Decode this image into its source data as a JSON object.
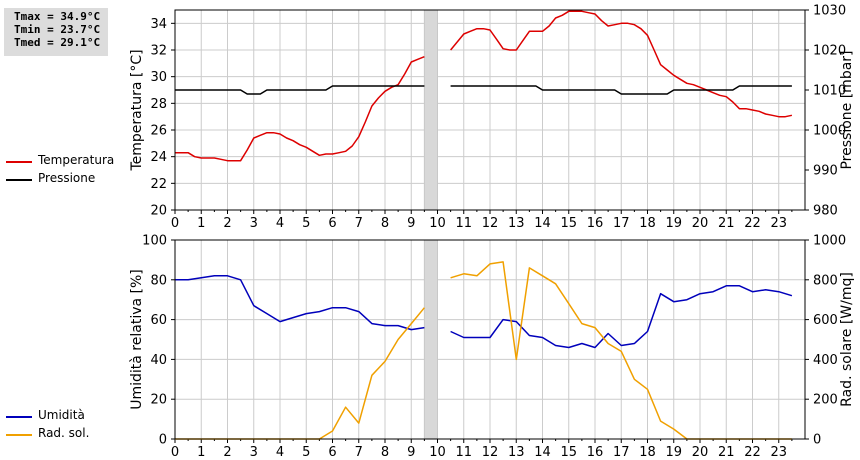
{
  "stats": {
    "tmax": "Tmax = 34.9°C",
    "tmin": "Tmin = 23.7°C",
    "tmed": "Tmed = 29.1°C"
  },
  "legend_top": [
    {
      "label": "Temperatura",
      "color": "#dd0000"
    },
    {
      "label": "Pressione",
      "color": "#000000"
    }
  ],
  "legend_bottom": [
    {
      "label": "Umidità",
      "color": "#0000bb"
    },
    {
      "label": "Rad. sol.",
      "color": "#f0a000"
    }
  ],
  "chart_data": [
    {
      "type": "line",
      "ylabel_left": "Temperatura [°C]",
      "ylabel_right": "Pressione [mbar]",
      "xlim": [
        0,
        24
      ],
      "ylim_left": [
        20,
        35
      ],
      "ylim_right": [
        980,
        1030
      ],
      "x_ticks": [
        "0",
        "1",
        "2",
        "3",
        "4",
        "5",
        "6",
        "7",
        "8",
        "9",
        "10",
        "11",
        "12",
        "13",
        "14",
        "15",
        "16",
        "17",
        "18",
        "19",
        "20",
        "21",
        "22",
        "23"
      ],
      "y_ticks_left": [
        "20",
        "22",
        "24",
        "26",
        "28",
        "30",
        "32",
        "34"
      ],
      "y_ticks_right": [
        "980",
        "990",
        "1000",
        "1010",
        "1020",
        "1030"
      ],
      "grid": true,
      "gap": [
        9.5,
        10.0
      ],
      "series": [
        {
          "name": "Temperatura",
          "axis": "left",
          "color": "#dd0000",
          "segments": [
            [
              [
                0,
                24.3
              ],
              [
                0.25,
                24.3
              ],
              [
                0.5,
                24.3
              ],
              [
                0.75,
                24.0
              ],
              [
                1,
                23.9
              ],
              [
                1.25,
                23.9
              ],
              [
                1.5,
                23.9
              ],
              [
                1.75,
                23.8
              ],
              [
                2,
                23.7
              ],
              [
                2.25,
                23.7
              ],
              [
                2.5,
                23.7
              ],
              [
                2.75,
                24.5
              ],
              [
                3,
                25.4
              ],
              [
                3.25,
                25.6
              ],
              [
                3.5,
                25.8
              ],
              [
                3.75,
                25.8
              ],
              [
                4,
                25.7
              ],
              [
                4.25,
                25.4
              ],
              [
                4.5,
                25.2
              ],
              [
                4.75,
                24.9
              ],
              [
                5,
                24.7
              ],
              [
                5.25,
                24.4
              ],
              [
                5.5,
                24.1
              ],
              [
                5.75,
                24.2
              ],
              [
                6,
                24.2
              ],
              [
                6.25,
                24.3
              ],
              [
                6.5,
                24.4
              ],
              [
                6.75,
                24.8
              ],
              [
                7,
                25.5
              ],
              [
                7.25,
                26.6
              ],
              [
                7.5,
                27.8
              ],
              [
                7.75,
                28.4
              ],
              [
                8,
                28.9
              ],
              [
                8.25,
                29.2
              ],
              [
                8.5,
                29.4
              ],
              [
                8.75,
                30.2
              ],
              [
                9,
                31.1
              ],
              [
                9.25,
                31.3
              ],
              [
                9.5,
                31.5
              ]
            ],
            [
              [
                10.5,
                32.0
              ],
              [
                10.75,
                32.6
              ],
              [
                11,
                33.2
              ],
              [
                11.25,
                33.4
              ],
              [
                11.5,
                33.6
              ],
              [
                11.75,
                33.6
              ],
              [
                12,
                33.5
              ],
              [
                12.25,
                32.8
              ],
              [
                12.5,
                32.1
              ],
              [
                12.75,
                32.0
              ],
              [
                13,
                32.0
              ],
              [
                13.25,
                32.7
              ],
              [
                13.5,
                33.4
              ],
              [
                13.75,
                33.4
              ],
              [
                14,
                33.4
              ],
              [
                14.25,
                33.8
              ],
              [
                14.5,
                34.4
              ],
              [
                14.75,
                34.6
              ],
              [
                15,
                34.9
              ],
              [
                15.25,
                34.9
              ],
              [
                15.5,
                34.9
              ],
              [
                15.75,
                34.8
              ],
              [
                16,
                34.7
              ],
              [
                16.25,
                34.2
              ],
              [
                16.5,
                33.8
              ],
              [
                16.75,
                33.9
              ],
              [
                17,
                34.0
              ],
              [
                17.25,
                34.0
              ],
              [
                17.5,
                33.9
              ],
              [
                17.75,
                33.6
              ],
              [
                18,
                33.1
              ],
              [
                18.25,
                32.0
              ],
              [
                18.5,
                30.9
              ],
              [
                18.75,
                30.5
              ],
              [
                19,
                30.1
              ],
              [
                19.25,
                29.8
              ],
              [
                19.5,
                29.5
              ],
              [
                19.75,
                29.4
              ],
              [
                20,
                29.2
              ],
              [
                20.25,
                29.0
              ],
              [
                20.5,
                28.8
              ],
              [
                20.75,
                28.6
              ],
              [
                21,
                28.5
              ],
              [
                21.25,
                28.1
              ],
              [
                21.5,
                27.6
              ],
              [
                21.75,
                27.6
              ],
              [
                22,
                27.5
              ],
              [
                22.25,
                27.4
              ],
              [
                22.5,
                27.2
              ],
              [
                22.75,
                27.1
              ],
              [
                23,
                27.0
              ],
              [
                23.25,
                27.0
              ],
              [
                23.5,
                27.1
              ]
            ]
          ]
        },
        {
          "name": "Pressione",
          "axis": "right",
          "color": "#000000",
          "segments": [
            [
              [
                0,
                1010
              ],
              [
                2.5,
                1010
              ],
              [
                2.75,
                1009
              ],
              [
                3.25,
                1009
              ],
              [
                3.5,
                1010
              ],
              [
                5.75,
                1010
              ],
              [
                6,
                1011
              ],
              [
                9.5,
                1011
              ]
            ],
            [
              [
                10.5,
                1011
              ],
              [
                13.75,
                1011
              ],
              [
                14,
                1010
              ],
              [
                16.75,
                1010
              ],
              [
                17,
                1009
              ],
              [
                18.75,
                1009
              ],
              [
                19,
                1010
              ],
              [
                21.25,
                1010
              ],
              [
                21.5,
                1011
              ],
              [
                23.5,
                1011
              ]
            ]
          ]
        }
      ]
    },
    {
      "type": "line",
      "ylabel_left": "Umidità relativa [%]",
      "ylabel_right": "Rad. solare [W/mq]",
      "xlim": [
        0,
        24
      ],
      "ylim_left": [
        0,
        100
      ],
      "ylim_right": [
        0,
        1000
      ],
      "x_ticks": [
        "0",
        "1",
        "2",
        "3",
        "4",
        "5",
        "6",
        "7",
        "8",
        "9",
        "10",
        "11",
        "12",
        "13",
        "14",
        "15",
        "16",
        "17",
        "18",
        "19",
        "20",
        "21",
        "22",
        "23"
      ],
      "y_ticks_left": [
        "0",
        "20",
        "40",
        "60",
        "80",
        "100"
      ],
      "y_ticks_right": [
        "0",
        "200",
        "400",
        "600",
        "800",
        "1000"
      ],
      "grid": true,
      "gap": [
        9.5,
        10.0
      ],
      "series": [
        {
          "name": "Umidità",
          "axis": "left",
          "color": "#0000bb",
          "segments": [
            [
              [
                0,
                80
              ],
              [
                0.5,
                80
              ],
              [
                1,
                81
              ],
              [
                1.5,
                82
              ],
              [
                2,
                82
              ],
              [
                2.5,
                80
              ],
              [
                3,
                67
              ],
              [
                3.5,
                63
              ],
              [
                4,
                59
              ],
              [
                4.5,
                61
              ],
              [
                5,
                63
              ],
              [
                5.5,
                64
              ],
              [
                6,
                66
              ],
              [
                6.5,
                66
              ],
              [
                7,
                64
              ],
              [
                7.5,
                58
              ],
              [
                8,
                57
              ],
              [
                8.5,
                57
              ],
              [
                9,
                55
              ],
              [
                9.5,
                56
              ]
            ],
            [
              [
                10.5,
                54
              ],
              [
                11,
                51
              ],
              [
                11.5,
                51
              ],
              [
                12,
                51
              ],
              [
                12.5,
                60
              ],
              [
                13,
                59
              ],
              [
                13.5,
                52
              ],
              [
                14,
                51
              ],
              [
                14.5,
                47
              ],
              [
                15,
                46
              ],
              [
                15.5,
                48
              ],
              [
                16,
                46
              ],
              [
                16.5,
                53
              ],
              [
                17,
                47
              ],
              [
                17.5,
                48
              ],
              [
                18,
                54
              ],
              [
                18.5,
                73
              ],
              [
                19,
                69
              ],
              [
                19.5,
                70
              ],
              [
                20,
                73
              ],
              [
                20.5,
                74
              ],
              [
                21,
                77
              ],
              [
                21.5,
                77
              ],
              [
                22,
                74
              ],
              [
                22.5,
                75
              ],
              [
                23,
                74
              ],
              [
                23.5,
                72
              ]
            ]
          ]
        },
        {
          "name": "Rad. sol.",
          "axis": "right",
          "color": "#f0a000",
          "segments": [
            [
              [
                0,
                0
              ],
              [
                5.5,
                0
              ],
              [
                6,
                40
              ],
              [
                6.5,
                160
              ],
              [
                7,
                80
              ],
              [
                7.5,
                320
              ],
              [
                8,
                390
              ],
              [
                8.5,
                500
              ],
              [
                9,
                580
              ],
              [
                9.5,
                660
              ]
            ],
            [
              [
                10.5,
                810
              ],
              [
                11,
                830
              ],
              [
                11.5,
                820
              ],
              [
                12,
                880
              ],
              [
                12.5,
                890
              ],
              [
                13,
                400
              ],
              [
                13.5,
                860
              ],
              [
                14,
                820
              ],
              [
                14.5,
                780
              ],
              [
                15,
                680
              ],
              [
                15.5,
                580
              ],
              [
                16,
                560
              ],
              [
                16.5,
                480
              ],
              [
                17,
                440
              ],
              [
                17.5,
                300
              ],
              [
                18,
                250
              ],
              [
                18.5,
                90
              ],
              [
                19,
                50
              ],
              [
                19.5,
                0
              ],
              [
                23.5,
                0
              ]
            ]
          ]
        }
      ]
    }
  ]
}
